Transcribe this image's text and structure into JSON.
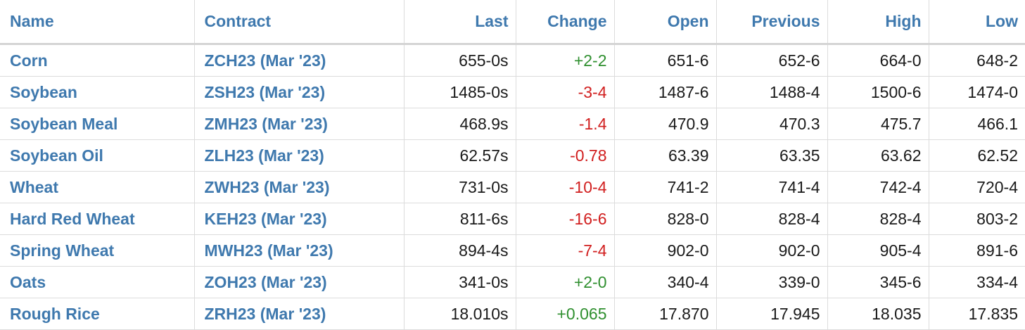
{
  "colors": {
    "header_link": "#3f79ae",
    "positive": "#2f8f2f",
    "negative": "#d11f1f",
    "border": "#dcdcdc"
  },
  "columns": {
    "name": "Name",
    "contract": "Contract",
    "last": "Last",
    "change": "Change",
    "open": "Open",
    "previous": "Previous",
    "high": "High",
    "low": "Low"
  },
  "rows": [
    {
      "name": "Corn",
      "contract": "ZCH23 (Mar '23)",
      "last": "655-0s",
      "change": "+2-2",
      "direction": "up",
      "open": "651-6",
      "previous": "652-6",
      "high": "664-0",
      "low": "648-2"
    },
    {
      "name": "Soybean",
      "contract": "ZSH23 (Mar '23)",
      "last": "1485-0s",
      "change": "-3-4",
      "direction": "down",
      "open": "1487-6",
      "previous": "1488-4",
      "high": "1500-6",
      "low": "1474-0"
    },
    {
      "name": "Soybean Meal",
      "contract": "ZMH23 (Mar '23)",
      "last": "468.9s",
      "change": "-1.4",
      "direction": "down",
      "open": "470.9",
      "previous": "470.3",
      "high": "475.7",
      "low": "466.1"
    },
    {
      "name": "Soybean Oil",
      "contract": "ZLH23 (Mar '23)",
      "last": "62.57s",
      "change": "-0.78",
      "direction": "down",
      "open": "63.39",
      "previous": "63.35",
      "high": "63.62",
      "low": "62.52"
    },
    {
      "name": "Wheat",
      "contract": "ZWH23 (Mar '23)",
      "last": "731-0s",
      "change": "-10-4",
      "direction": "down",
      "open": "741-2",
      "previous": "741-4",
      "high": "742-4",
      "low": "720-4"
    },
    {
      "name": "Hard Red Wheat",
      "contract": "KEH23 (Mar '23)",
      "last": "811-6s",
      "change": "-16-6",
      "direction": "down",
      "open": "828-0",
      "previous": "828-4",
      "high": "828-4",
      "low": "803-2"
    },
    {
      "name": "Spring Wheat",
      "contract": "MWH23 (Mar '23)",
      "last": "894-4s",
      "change": "-7-4",
      "direction": "down",
      "open": "902-0",
      "previous": "902-0",
      "high": "905-4",
      "low": "891-6"
    },
    {
      "name": "Oats",
      "contract": "ZOH23 (Mar '23)",
      "last": "341-0s",
      "change": "+2-0",
      "direction": "up",
      "open": "340-4",
      "previous": "339-0",
      "high": "345-6",
      "low": "334-4"
    },
    {
      "name": "Rough Rice",
      "contract": "ZRH23 (Mar '23)",
      "last": "18.010s",
      "change": "+0.065",
      "direction": "up",
      "open": "17.870",
      "previous": "17.945",
      "high": "18.035",
      "low": "17.835"
    }
  ]
}
